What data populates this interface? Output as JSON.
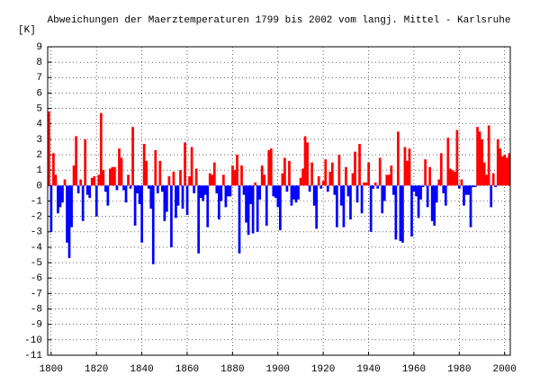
{
  "chart_data": {
    "type": "bar",
    "title": "Abweichungen der Maerztemperaturen 1799 bis 2002 vom langj. Mittel - Karlsruhe",
    "y_unit_label": "[K]",
    "x": [
      1799,
      1800,
      1801,
      1802,
      1803,
      1804,
      1805,
      1806,
      1807,
      1808,
      1809,
      1810,
      1811,
      1812,
      1813,
      1814,
      1815,
      1816,
      1817,
      1818,
      1819,
      1820,
      1821,
      1822,
      1823,
      1824,
      1825,
      1826,
      1827,
      1828,
      1829,
      1830,
      1831,
      1832,
      1833,
      1834,
      1835,
      1836,
      1837,
      1838,
      1839,
      1840,
      1841,
      1842,
      1843,
      1844,
      1845,
      1846,
      1847,
      1848,
      1849,
      1850,
      1851,
      1852,
      1853,
      1854,
      1855,
      1856,
      1857,
      1858,
      1859,
      1860,
      1861,
      1862,
      1863,
      1864,
      1865,
      1866,
      1867,
      1868,
      1869,
      1870,
      1871,
      1872,
      1873,
      1874,
      1875,
      1876,
      1877,
      1878,
      1879,
      1880,
      1881,
      1882,
      1883,
      1884,
      1885,
      1886,
      1887,
      1888,
      1889,
      1890,
      1891,
      1892,
      1893,
      1894,
      1895,
      1896,
      1897,
      1898,
      1899,
      1900,
      1901,
      1902,
      1903,
      1904,
      1905,
      1906,
      1907,
      1908,
      1909,
      1910,
      1911,
      1912,
      1913,
      1914,
      1915,
      1916,
      1917,
      1918,
      1919,
      1920,
      1921,
      1922,
      1923,
      1924,
      1925,
      1926,
      1927,
      1928,
      1929,
      1930,
      1931,
      1932,
      1933,
      1934,
      1935,
      1936,
      1937,
      1938,
      1939,
      1940,
      1941,
      1942,
      1943,
      1944,
      1945,
      1946,
      1947,
      1948,
      1949,
      1950,
      1951,
      1952,
      1953,
      1954,
      1955,
      1956,
      1957,
      1958,
      1959,
      1960,
      1961,
      1962,
      1963,
      1964,
      1965,
      1966,
      1967,
      1968,
      1969,
      1970,
      1971,
      1972,
      1973,
      1974,
      1975,
      1976,
      1977,
      1978,
      1979,
      1980,
      1981,
      1982,
      1983,
      1984,
      1985,
      1986,
      1987,
      1988,
      1989,
      1990,
      1991,
      1992,
      1993,
      1994,
      1995,
      1996,
      1997,
      1998,
      1999,
      2000,
      2001,
      2002
    ],
    "values": [
      4.8,
      -3.0,
      2.1,
      0.7,
      -1.8,
      -1.4,
      -1.1,
      0.4,
      -3.7,
      -4.7,
      -2.7,
      1.3,
      3.2,
      -0.5,
      0.4,
      -2.3,
      3.0,
      -0.6,
      -0.8,
      0.5,
      0.6,
      -2.0,
      0.7,
      4.7,
      1.0,
      -0.4,
      -1.3,
      1.1,
      1.2,
      1.2,
      -0.3,
      2.4,
      1.8,
      -0.3,
      -1.1,
      0.7,
      -0.2,
      3.8,
      -2.6,
      -0.5,
      -1.2,
      -3.7,
      2.7,
      1.6,
      -0.2,
      -1.5,
      -5.1,
      2.3,
      -0.5,
      1.6,
      -0.4,
      -2.3,
      -1.7,
      0.6,
      -4.0,
      0.9,
      -2.1,
      -1.3,
      1.0,
      -1.5,
      2.8,
      -1.9,
      0.6,
      2.5,
      -0.5,
      1.1,
      -4.4,
      -0.8,
      -1.0,
      -0.6,
      -2.7,
      0.8,
      0.7,
      1.5,
      -0.5,
      -2.2,
      -1.0,
      0.7,
      -1.4,
      -0.7,
      -0.7,
      1.3,
      1.0,
      2.0,
      -4.4,
      1.3,
      -0.6,
      -2.4,
      -3.2,
      -1.2,
      -3.1,
      0.2,
      -3.0,
      -0.9,
      1.3,
      0.7,
      -2.6,
      2.3,
      2.4,
      -0.7,
      -0.8,
      -1.4,
      -2.9,
      0.8,
      1.8,
      -0.4,
      1.6,
      -1.3,
      -0.9,
      -1.1,
      -0.9,
      0.5,
      1.1,
      3.2,
      2.8,
      -0.4,
      1.5,
      -1.3,
      -2.8,
      0.6,
      -0.2,
      0.3,
      1.7,
      -0.4,
      0.9,
      1.5,
      -0.6,
      -2.7,
      2.0,
      -1.3,
      -2.7,
      1.2,
      -0.7,
      -2.2,
      0.8,
      2.2,
      -1.1,
      2.7,
      -1.8,
      0.2,
      0.2,
      1.5,
      -3.0,
      -0.2,
      0.2,
      -0.2,
      1.8,
      -1.8,
      -1.0,
      0.7,
      0.7,
      1.3,
      -0.6,
      -3.5,
      3.5,
      -3.6,
      -3.7,
      2.5,
      1.6,
      2.4,
      -3.3,
      -0.4,
      -0.7,
      -2.1,
      -0.9,
      -0.1,
      1.7,
      -1.4,
      1.2,
      -2.3,
      -2.6,
      -1.1,
      0.4,
      2.1,
      -0.5,
      -1.3,
      3.1,
      1.1,
      1.0,
      0.9,
      3.6,
      -0.2,
      0.4,
      -1.3,
      -0.6,
      -0.6,
      -2.7,
      -0.1,
      -0.1,
      3.8,
      3.5,
      3.0,
      1.5,
      0.7,
      3.9,
      -1.4,
      0.8,
      -0.1,
      3.0,
      2.4,
      1.9,
      2.0,
      1.8,
      2.1
    ],
    "positive_color": "#ff0000",
    "negative_color": "#0000ff",
    "xlim": [
      1798.5,
      2002.5
    ],
    "xticks": [
      1800,
      1820,
      1840,
      1860,
      1880,
      1900,
      1920,
      1940,
      1960,
      1980,
      2000
    ],
    "ylim": [
      -11,
      9
    ],
    "yticks": [
      -11,
      -10,
      -9,
      -8,
      -7,
      -6,
      -5,
      -4,
      -3,
      -2,
      -1,
      0,
      1,
      2,
      3,
      4,
      5,
      6,
      7,
      8,
      9
    ],
    "grid": true
  }
}
